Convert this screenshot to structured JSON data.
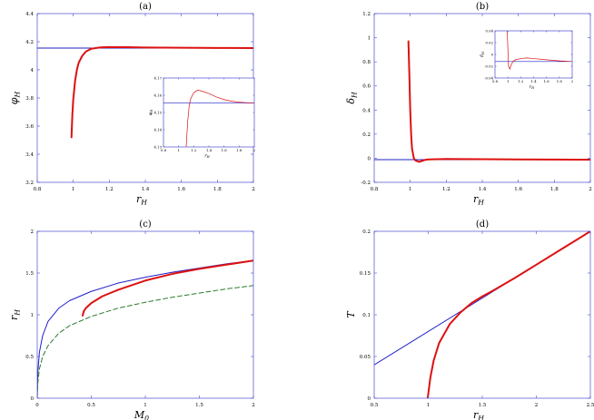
{
  "chart_data": [
    {
      "id": "a",
      "type": "line",
      "title": "(a)",
      "xlabel": "r_H",
      "ylabel": "φ_H",
      "xlim": [
        0.8,
        2
      ],
      "ylim": [
        3.2,
        4.4
      ],
      "xticks": [
        0.8,
        1,
        1.2,
        1.4,
        1.6,
        1.8,
        2
      ],
      "xtick_labels": [
        "0.8",
        "1",
        "1.2",
        "1.4",
        "1.6",
        "1.8",
        "2"
      ],
      "yticks": [
        3.2,
        3.4,
        3.6,
        3.8,
        4,
        4.2,
        4.4
      ],
      "ytick_labels": [
        "3.2",
        "3.4",
        "3.6",
        "3.8",
        "4",
        "4.2",
        "4.4"
      ],
      "series": [
        {
          "style": "solid",
          "color": "#1f1fc8",
          "width": 1,
          "x": [
            0.8,
            2
          ],
          "y": [
            4.155,
            4.155
          ]
        },
        {
          "style": "solid",
          "color": "#dd1111",
          "width": 2,
          "x": [
            0.99,
            0.995,
            1.0,
            1.01,
            1.02,
            1.03,
            1.05,
            1.07,
            1.1,
            1.15,
            1.2,
            1.3,
            1.4,
            1.6,
            1.8,
            2.0
          ],
          "y": [
            3.52,
            3.68,
            3.79,
            3.92,
            4.0,
            4.05,
            4.1,
            4.13,
            4.15,
            4.16,
            4.162,
            4.161,
            4.159,
            4.157,
            4.156,
            4.155
          ]
        }
      ],
      "inset": {
        "xlim": [
          0.8,
          2
        ],
        "ylim": [
          4.13,
          4.17
        ],
        "xticks": [
          0.8,
          1,
          1.2,
          1.4,
          1.6,
          1.8,
          2
        ],
        "xtick_labels": [
          "0.8",
          "1",
          "1.2",
          "1.4",
          "1.6",
          "1.8",
          "2"
        ],
        "yticks": [
          4.13,
          4.14,
          4.15,
          4.16,
          4.17
        ],
        "ytick_labels": [
          "4.13",
          "4.14",
          "4.15",
          "4.16",
          "4.17"
        ],
        "xlabel": "r_H",
        "ylabel": "φ_H",
        "series": [
          {
            "style": "solid",
            "color": "#1f1fc8",
            "width": 0.7,
            "x": [
              0.8,
              2
            ],
            "y": [
              4.1555,
              4.1555
            ]
          },
          {
            "style": "solid",
            "color": "#dd1111",
            "width": 0.7,
            "x": [
              1.1,
              1.12,
              1.14,
              1.16,
              1.2,
              1.25,
              1.3,
              1.4,
              1.5,
              1.6,
              1.7,
              1.8,
              1.9,
              2.0
            ],
            "y": [
              4.13,
              4.145,
              4.154,
              4.158,
              4.1615,
              4.163,
              4.1625,
              4.161,
              4.159,
              4.1575,
              4.1565,
              4.156,
              4.1557,
              4.1555
            ]
          }
        ]
      }
    },
    {
      "id": "b",
      "type": "line",
      "title": "(b)",
      "xlabel": "r_H",
      "ylabel": "δ_H",
      "xlim": [
        0.8,
        2
      ],
      "ylim": [
        -0.2,
        1.2
      ],
      "xticks": [
        0.8,
        1,
        1.2,
        1.4,
        1.6,
        1.8,
        2
      ],
      "xtick_labels": [
        "0.8",
        "1",
        "1.2",
        "1.4",
        "1.6",
        "1.8",
        "2"
      ],
      "yticks": [
        -0.2,
        0,
        0.2,
        0.4,
        0.6,
        0.8,
        1,
        1.2
      ],
      "ytick_labels": [
        "-0.2",
        "0",
        "0.2",
        "0.4",
        "0.6",
        "0.8",
        "1",
        "1.2"
      ],
      "series": [
        {
          "style": "solid",
          "color": "#1f1fc8",
          "width": 1,
          "x": [
            0.8,
            2
          ],
          "y": [
            -0.012,
            -0.012
          ]
        },
        {
          "style": "solid",
          "color": "#dd1111",
          "width": 2,
          "x": [
            0.99,
            0.995,
            1.0,
            1.005,
            1.01,
            1.02,
            1.03,
            1.05,
            1.08,
            1.1,
            1.2,
            1.4,
            1.6,
            1.8,
            2.0
          ],
          "y": [
            0.97,
            0.7,
            0.4,
            0.2,
            0.08,
            0.0,
            -0.02,
            -0.03,
            -0.015,
            -0.01,
            -0.006,
            -0.008,
            -0.01,
            -0.011,
            -0.012
          ]
        }
      ],
      "inset": {
        "xlim": [
          0.8,
          2
        ],
        "ylim": [
          -0.04,
          0.04
        ],
        "xticks": [
          0.8,
          1,
          1.2,
          1.4,
          1.6,
          1.8,
          2
        ],
        "xtick_labels": [
          "0.8",
          "1",
          "1.2",
          "1.4",
          "1.6",
          "1.8",
          "2"
        ],
        "yticks": [
          -0.04,
          -0.02,
          0,
          0.02,
          0.04
        ],
        "ytick_labels": [
          "-0.04",
          "-0.02",
          "0",
          "0.02",
          "0.04"
        ],
        "xlabel": "r_H",
        "ylabel": "δ_H",
        "series": [
          {
            "style": "solid",
            "color": "#1f1fc8",
            "width": 0.7,
            "x": [
              0.8,
              2
            ],
            "y": [
              -0.012,
              -0.012
            ]
          },
          {
            "style": "solid",
            "color": "#dd1111",
            "width": 0.7,
            "x": [
              0.99,
              1.0,
              1.01,
              1.03,
              1.05,
              1.08,
              1.12,
              1.2,
              1.3,
              1.4,
              1.6,
              1.8,
              2.0
            ],
            "y": [
              0.04,
              0.01,
              -0.02,
              -0.025,
              -0.018,
              -0.012,
              -0.009,
              -0.007,
              -0.006,
              -0.007,
              -0.009,
              -0.011,
              -0.012
            ]
          }
        ]
      }
    },
    {
      "id": "c",
      "type": "line",
      "title": "(c)",
      "xlabel": "M_0",
      "ylabel": "r_H",
      "xlim": [
        0,
        2
      ],
      "ylim": [
        0,
        2
      ],
      "xticks": [
        0,
        0.5,
        1,
        1.5,
        2
      ],
      "xtick_labels": [
        "0",
        "0.5",
        "1",
        "1.5",
        "2"
      ],
      "yticks": [
        0,
        0.5,
        1,
        1.5,
        2
      ],
      "ytick_labels": [
        "0",
        "0.5",
        "1",
        "1.5",
        "2"
      ],
      "series": [
        {
          "style": "solid",
          "color": "#1f1fc8",
          "width": 1,
          "x": [
            0,
            0.005,
            0.02,
            0.05,
            0.1,
            0.2,
            0.3,
            0.5,
            0.75,
            1.0,
            1.25,
            1.5,
            1.75,
            2.0
          ],
          "y": [
            0,
            0.3,
            0.55,
            0.75,
            0.92,
            1.08,
            1.17,
            1.28,
            1.38,
            1.45,
            1.51,
            1.56,
            1.61,
            1.65
          ]
        },
        {
          "style": "dashed",
          "color": "#2a7a2a",
          "width": 1,
          "x": [
            0,
            0.005,
            0.02,
            0.05,
            0.1,
            0.2,
            0.3,
            0.5,
            0.75,
            1.0,
            1.25,
            1.5,
            1.75,
            2.0
          ],
          "y": [
            0,
            0.18,
            0.35,
            0.5,
            0.63,
            0.78,
            0.87,
            0.98,
            1.08,
            1.15,
            1.21,
            1.26,
            1.31,
            1.35
          ]
        },
        {
          "style": "solid",
          "color": "#dd1111",
          "width": 2,
          "x": [
            0.42,
            0.43,
            0.45,
            0.5,
            0.6,
            0.75,
            1.0,
            1.25,
            1.5,
            1.75,
            2.0
          ],
          "y": [
            0.99,
            1.04,
            1.08,
            1.14,
            1.22,
            1.3,
            1.41,
            1.49,
            1.55,
            1.6,
            1.65
          ]
        }
      ]
    },
    {
      "id": "d",
      "type": "line",
      "title": "(d)",
      "xlabel": "r_H",
      "ylabel": "T",
      "xlim": [
        0.5,
        2.5
      ],
      "ylim": [
        0,
        0.2
      ],
      "xticks": [
        0.5,
        1,
        1.5,
        2,
        2.5
      ],
      "xtick_labels": [
        "0.5",
        "1",
        "1.5",
        "2",
        "2.5"
      ],
      "yticks": [
        0,
        0.05,
        0.1,
        0.15,
        0.2
      ],
      "ytick_labels": [
        "0",
        "0.05",
        "0.1",
        "0.15",
        "0.2"
      ],
      "series": [
        {
          "style": "solid",
          "color": "#1f1fc8",
          "width": 1,
          "x": [
            0.5,
            2.5
          ],
          "y": [
            0.04,
            0.2
          ]
        },
        {
          "style": "solid",
          "color": "#dd1111",
          "width": 2,
          "x": [
            0.995,
            1.0,
            1.02,
            1.05,
            1.1,
            1.2,
            1.3,
            1.4,
            1.5,
            1.6,
            1.8,
            2.0,
            2.25,
            2.5
          ],
          "y": [
            0.0,
            0.005,
            0.025,
            0.045,
            0.066,
            0.089,
            0.103,
            0.114,
            0.122,
            0.129,
            0.144,
            0.16,
            0.18,
            0.2
          ]
        }
      ]
    }
  ]
}
